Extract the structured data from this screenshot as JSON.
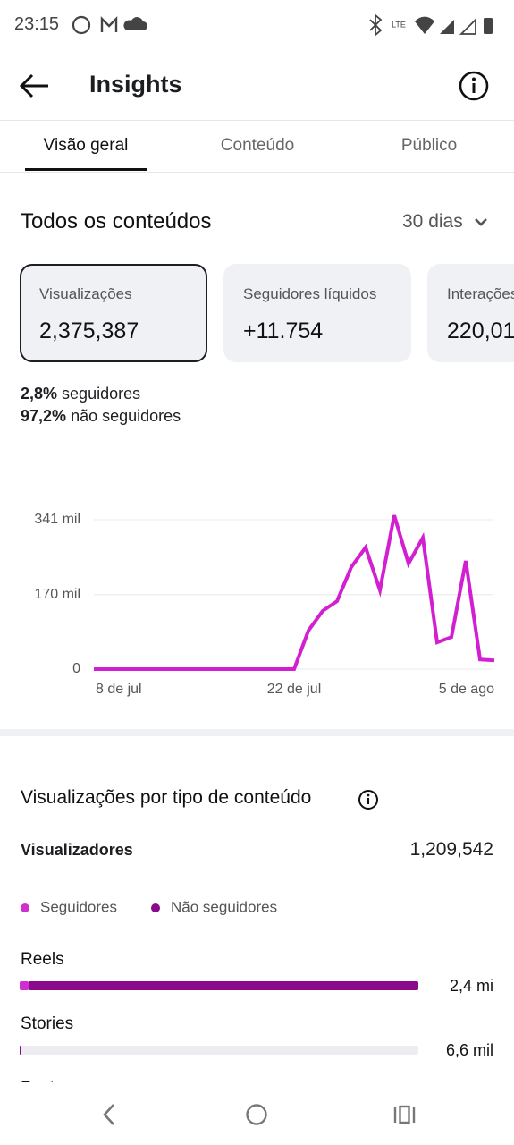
{
  "status_bar": {
    "time": "23:15"
  },
  "header": {
    "title": "Insights"
  },
  "tabs": [
    "Visão geral",
    "Conteúdo",
    "Público"
  ],
  "overview": {
    "title": "Todos os conteúdos",
    "period": "30 dias",
    "cards": [
      {
        "label": "Visualizações",
        "value": "2,375,387"
      },
      {
        "label": "Seguidores líquidos",
        "value": "+11.754"
      },
      {
        "label": "Interações",
        "value": "220,01"
      }
    ],
    "breakdown": [
      {
        "percent": "2,8%",
        "label": "seguidores"
      },
      {
        "percent": "97,2%",
        "label": "não seguidores"
      }
    ]
  },
  "chart_data": [
    {
      "type": "line",
      "color": "#d11fd1",
      "categories": [
        "8 de jul",
        null,
        null,
        null,
        null,
        null,
        null,
        null,
        null,
        null,
        null,
        null,
        null,
        null,
        "22 de jul",
        null,
        null,
        null,
        null,
        null,
        null,
        null,
        null,
        null,
        null,
        null,
        null,
        null,
        "5 de ago"
      ],
      "values": [
        0,
        0,
        0,
        0,
        0,
        0,
        0,
        0,
        0,
        0,
        0,
        0,
        0,
        0,
        0,
        88,
        133,
        155,
        233,
        278,
        180,
        351,
        241,
        300,
        61,
        73,
        247,
        22,
        20
      ],
      "ylim": [
        0,
        341
      ],
      "yticks": [
        0,
        {
          "value": 170,
          "label": "170 mil"
        },
        {
          "value": 341,
          "label": "341 mil"
        }
      ],
      "grid": true
    },
    {
      "type": "bar",
      "orientation": "horizontal",
      "stacked": true,
      "title": "Visualizações por tipo de conteúdo",
      "summary": {
        "label": "Visualizadores",
        "value": "1,209,542"
      },
      "categories": [
        "Reels",
        "Stories",
        "Posts"
      ],
      "series": [
        {
          "name": "Seguidores",
          "color": "#cf2fcf",
          "values": [
            54,
            0.2,
            null
          ]
        },
        {
          "name": "Não seguidores",
          "color": "#8b0a8b",
          "values": [
            2346,
            6.4,
            null
          ]
        }
      ],
      "totals": {
        "values": [
          2400,
          6.6,
          null
        ],
        "value_labels": [
          "2,4 mi",
          "6,6 mil",
          null
        ]
      },
      "xlim": [
        0,
        2400
      ]
    }
  ]
}
